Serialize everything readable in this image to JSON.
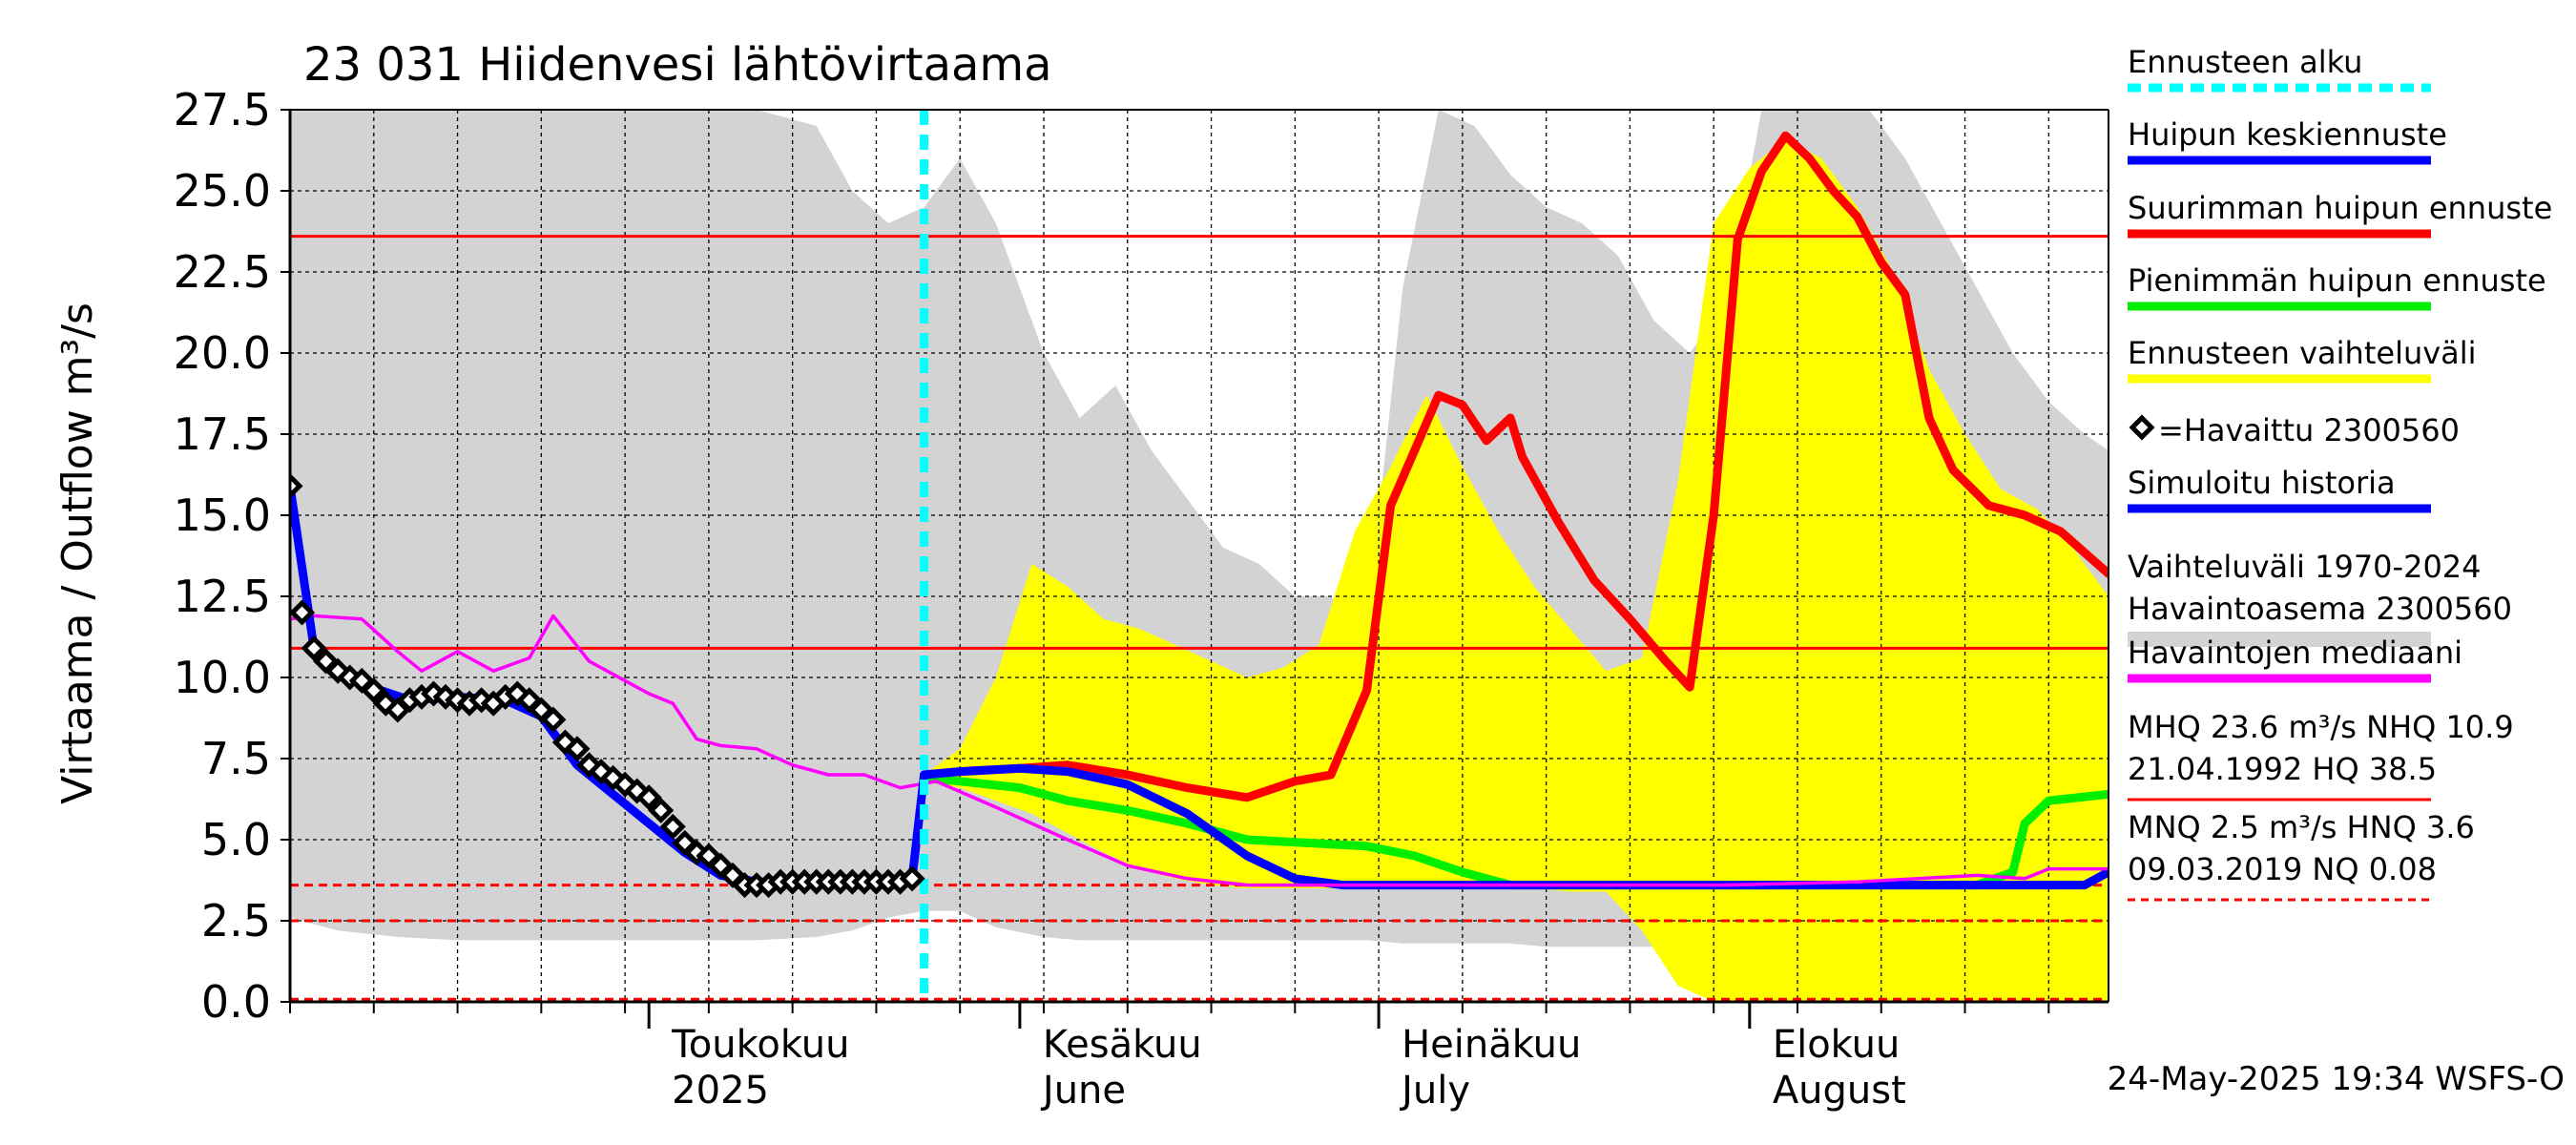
{
  "chart_data": {
    "type": "line",
    "title": "23 031 Hiidenvesi lähtövirtaama",
    "ylabel": "Virtaama / Outflow    m³/s",
    "ylim": [
      0,
      27.5
    ],
    "yticks": [
      "0.0",
      "2.5",
      "5.0",
      "7.5",
      "10.0",
      "12.5",
      "15.0",
      "17.5",
      "20.0",
      "22.5",
      "25.0",
      "27.5"
    ],
    "x_range": [
      "2025-04-01",
      "2025-08-31"
    ],
    "month_labels": [
      {
        "date": "2025-05-01",
        "line1": "Toukokuu",
        "line2": "2025"
      },
      {
        "date": "2025-06-01",
        "line1": "Kesäkuu",
        "line2": "June"
      },
      {
        "date": "2025-07-01",
        "line1": "Heinäkuu",
        "line2": "July"
      },
      {
        "date": "2025-08-01",
        "line1": "Elokuu",
        "line2": "August"
      }
    ],
    "forecast_start": "2025-05-24",
    "reference_lines": [
      {
        "name": "MHQ",
        "value": 23.6,
        "color": "#ff0000",
        "style": "solid"
      },
      {
        "name": "NHQ",
        "value": 10.9,
        "color": "#ff0000",
        "style": "solid"
      },
      {
        "name": "MNQ",
        "value": 2.5,
        "color": "#ff0000",
        "style": "dashed"
      },
      {
        "name": "HNQ",
        "value": 3.6,
        "color": "#ff0000",
        "style": "dashed"
      },
      {
        "name": "NQ",
        "value": 0.08,
        "color": "#ff0000",
        "style": "dashed"
      }
    ],
    "series": [
      {
        "name": "Vaihteluväli 1970-2024 Havaintoasema 2300560",
        "kind": "band",
        "color": "#d3d3d3",
        "x": [
          "2025-04-01",
          "2025-04-05",
          "2025-04-10",
          "2025-04-15",
          "2025-04-20",
          "2025-04-25",
          "2025-04-30",
          "2025-05-05",
          "2025-05-10",
          "2025-05-15",
          "2025-05-18",
          "2025-05-21",
          "2025-05-24",
          "2025-05-27",
          "2025-05-30",
          "2025-06-03",
          "2025-06-06",
          "2025-06-09",
          "2025-06-12",
          "2025-06-15",
          "2025-06-18",
          "2025-06-21",
          "2025-06-24",
          "2025-06-27",
          "2025-06-30",
          "2025-07-03",
          "2025-07-06",
          "2025-07-09",
          "2025-07-12",
          "2025-07-15",
          "2025-07-18",
          "2025-07-21",
          "2025-07-24",
          "2025-07-27",
          "2025-07-30",
          "2025-08-02",
          "2025-08-05",
          "2025-08-08",
          "2025-08-11",
          "2025-08-14",
          "2025-08-17",
          "2025-08-20",
          "2025-08-23",
          "2025-08-26",
          "2025-08-29",
          "2025-08-31"
        ],
        "low": [
          2.6,
          2.2,
          2.0,
          1.9,
          1.9,
          1.9,
          1.9,
          1.9,
          1.9,
          2.0,
          2.2,
          2.6,
          2.8,
          2.8,
          2.3,
          2.0,
          1.9,
          1.9,
          1.9,
          1.9,
          1.9,
          1.9,
          1.9,
          1.9,
          1.9,
          1.8,
          1.8,
          1.8,
          1.8,
          1.7,
          1.7,
          1.7,
          1.7,
          1.7,
          1.7,
          1.6,
          1.5,
          1.5,
          1.5,
          1.5,
          1.5,
          1.4,
          1.3,
          1.2,
          1.1,
          1.1
        ],
        "high": [
          27.5,
          27.5,
          27.5,
          27.5,
          27.5,
          27.5,
          27.5,
          27.5,
          27.5,
          27.0,
          25.0,
          24.0,
          24.5,
          26.0,
          24.0,
          20.0,
          18.0,
          19.0,
          17.0,
          15.5,
          14.0,
          13.5,
          12.5,
          12.5,
          11.5,
          22.0,
          27.5,
          27.0,
          25.5,
          24.5,
          24.0,
          23.0,
          21.0,
          20.0,
          21.5,
          27.5,
          27.5,
          27.5,
          27.5,
          26.0,
          24.0,
          22.0,
          20.0,
          18.5,
          17.5,
          17.0
        ]
      },
      {
        "name": "Ennusteen vaihteluväli",
        "kind": "band",
        "color": "#ffff00",
        "x": [
          "2025-05-24",
          "2025-05-27",
          "2025-05-30",
          "2025-06-02",
          "2025-06-05",
          "2025-06-08",
          "2025-06-11",
          "2025-06-14",
          "2025-06-17",
          "2025-06-20",
          "2025-06-23",
          "2025-06-26",
          "2025-06-29",
          "2025-07-02",
          "2025-07-05",
          "2025-07-08",
          "2025-07-11",
          "2025-07-14",
          "2025-07-17",
          "2025-07-20",
          "2025-07-23",
          "2025-07-26",
          "2025-07-29",
          "2025-08-01",
          "2025-08-04",
          "2025-08-07",
          "2025-08-10",
          "2025-08-13",
          "2025-08-16",
          "2025-08-19",
          "2025-08-22",
          "2025-08-25",
          "2025-08-28",
          "2025-08-31"
        ],
        "low": [
          6.8,
          6.6,
          6.2,
          5.8,
          5.2,
          4.6,
          4.1,
          3.8,
          3.6,
          3.5,
          3.5,
          3.5,
          3.5,
          3.5,
          3.5,
          3.5,
          3.5,
          3.5,
          3.4,
          3.4,
          2.2,
          0.5,
          0.0,
          0.0,
          0.0,
          0.0,
          0.0,
          0.0,
          0.0,
          0.0,
          0.0,
          0.0,
          0.0,
          0.0
        ],
        "high": [
          7.0,
          7.8,
          10.0,
          13.5,
          12.8,
          11.8,
          11.5,
          11.0,
          10.5,
          10.0,
          10.3,
          11.0,
          14.5,
          16.5,
          18.7,
          16.5,
          14.5,
          12.8,
          11.5,
          10.2,
          10.6,
          16.0,
          24.0,
          25.7,
          26.6,
          26.0,
          24.5,
          22.5,
          19.5,
          17.5,
          15.8,
          15.2,
          14.0,
          12.5
        ]
      },
      {
        "name": "Suurimman huipun ennuste",
        "kind": "line",
        "color": "#ff0000",
        "x": [
          "2025-05-24",
          "2025-05-27",
          "2025-06-01",
          "2025-06-05",
          "2025-06-10",
          "2025-06-15",
          "2025-06-20",
          "2025-06-24",
          "2025-06-27",
          "2025-06-30",
          "2025-07-02",
          "2025-07-04",
          "2025-07-06",
          "2025-07-08",
          "2025-07-10",
          "2025-07-12",
          "2025-07-13",
          "2025-07-16",
          "2025-07-19",
          "2025-07-22",
          "2025-07-25",
          "2025-07-27",
          "2025-07-29",
          "2025-07-31",
          "2025-08-02",
          "2025-08-04",
          "2025-08-06",
          "2025-08-08",
          "2025-08-10",
          "2025-08-12",
          "2025-08-14",
          "2025-08-16",
          "2025-08-18",
          "2025-08-21",
          "2025-08-24",
          "2025-08-27",
          "2025-08-31"
        ],
        "y": [
          7.0,
          7.1,
          7.2,
          7.3,
          7.0,
          6.6,
          6.3,
          6.8,
          7.0,
          9.6,
          15.3,
          17.0,
          18.7,
          18.4,
          17.3,
          18.0,
          16.8,
          14.8,
          13.0,
          11.8,
          10.5,
          9.7,
          15.0,
          23.5,
          25.6,
          26.7,
          26.0,
          25.0,
          24.2,
          22.8,
          21.8,
          18.0,
          16.4,
          15.3,
          15.0,
          14.5,
          13.2
        ]
      },
      {
        "name": "Pienimmän huipun ennuste",
        "kind": "line",
        "color": "#00ee00",
        "x": [
          "2025-05-24",
          "2025-05-27",
          "2025-06-01",
          "2025-06-05",
          "2025-06-10",
          "2025-06-15",
          "2025-06-20",
          "2025-06-25",
          "2025-06-30",
          "2025-07-04",
          "2025-07-08",
          "2025-07-12",
          "2025-07-20",
          "2025-07-30",
          "2025-08-10",
          "2025-08-20",
          "2025-08-23",
          "2025-08-24",
          "2025-08-26",
          "2025-08-31"
        ],
        "y": [
          6.9,
          6.8,
          6.6,
          6.2,
          5.9,
          5.5,
          5.0,
          4.9,
          4.8,
          4.5,
          4.0,
          3.6,
          3.6,
          3.6,
          3.6,
          3.6,
          4.0,
          5.5,
          6.2,
          6.4
        ]
      },
      {
        "name": "Huipun keskiennuste",
        "kind": "line",
        "color": "#0000ff",
        "x": [
          "2025-05-24",
          "2025-05-27",
          "2025-06-01",
          "2025-06-05",
          "2025-06-10",
          "2025-06-15",
          "2025-06-20",
          "2025-06-24",
          "2025-06-28",
          "2025-07-05",
          "2025-07-15",
          "2025-07-25",
          "2025-08-05",
          "2025-08-15",
          "2025-08-25",
          "2025-08-29",
          "2025-08-31"
        ],
        "y": [
          7.0,
          7.1,
          7.2,
          7.1,
          6.7,
          5.8,
          4.5,
          3.8,
          3.6,
          3.6,
          3.6,
          3.6,
          3.6,
          3.6,
          3.6,
          3.6,
          4.0
        ]
      },
      {
        "name": "Havaintojen mediaani",
        "kind": "line",
        "color": "#ff00ff",
        "x": [
          "2025-04-01",
          "2025-04-03",
          "2025-04-07",
          "2025-04-10",
          "2025-04-12",
          "2025-04-15",
          "2025-04-18",
          "2025-04-21",
          "2025-04-23",
          "2025-04-26",
          "2025-04-29",
          "2025-05-01",
          "2025-05-03",
          "2025-05-05",
          "2025-05-07",
          "2025-05-10",
          "2025-05-13",
          "2025-05-16",
          "2025-05-19",
          "2025-05-22",
          "2025-05-25",
          "2025-05-30",
          "2025-06-05",
          "2025-06-10",
          "2025-06-15",
          "2025-06-20",
          "2025-06-30",
          "2025-07-15",
          "2025-07-30",
          "2025-08-10",
          "2025-08-20",
          "2025-08-24",
          "2025-08-26",
          "2025-08-31"
        ],
        "y": [
          11.8,
          11.9,
          11.8,
          10.8,
          10.2,
          10.8,
          10.2,
          10.6,
          11.9,
          10.5,
          9.9,
          9.5,
          9.2,
          8.1,
          7.9,
          7.8,
          7.3,
          7.0,
          7.0,
          6.6,
          6.8,
          6.0,
          5.0,
          4.2,
          3.8,
          3.6,
          3.6,
          3.6,
          3.6,
          3.7,
          3.9,
          3.8,
          4.1,
          4.1
        ]
      },
      {
        "name": "Simuloitu historia",
        "kind": "line",
        "color": "#0000ff",
        "x": [
          "2025-04-01",
          "2025-04-03",
          "2025-04-07",
          "2025-04-11",
          "2025-04-15",
          "2025-04-19",
          "2025-04-22",
          "2025-04-25",
          "2025-04-28",
          "2025-05-01",
          "2025-05-04",
          "2025-05-07",
          "2025-05-10",
          "2025-05-13",
          "2025-05-16",
          "2025-05-19",
          "2025-05-22",
          "2025-05-23",
          "2025-05-24"
        ],
        "y": [
          15.9,
          10.9,
          9.8,
          9.3,
          9.4,
          9.3,
          8.8,
          7.3,
          6.4,
          5.5,
          4.6,
          3.9,
          3.7,
          3.7,
          3.7,
          3.7,
          3.7,
          3.8,
          7.0
        ]
      },
      {
        "name": "=Havaittu 2300560",
        "kind": "markers",
        "color": "#000000",
        "x": [
          "2025-04-01",
          "2025-04-02",
          "2025-04-03",
          "2025-04-04",
          "2025-04-05",
          "2025-04-06",
          "2025-04-07",
          "2025-04-08",
          "2025-04-09",
          "2025-04-10",
          "2025-04-11",
          "2025-04-12",
          "2025-04-13",
          "2025-04-14",
          "2025-04-15",
          "2025-04-16",
          "2025-04-17",
          "2025-04-18",
          "2025-04-19",
          "2025-04-20",
          "2025-04-21",
          "2025-04-22",
          "2025-04-23",
          "2025-04-24",
          "2025-04-25",
          "2025-04-26",
          "2025-04-27",
          "2025-04-28",
          "2025-04-29",
          "2025-04-30",
          "2025-05-01",
          "2025-05-02",
          "2025-05-03",
          "2025-05-04",
          "2025-05-05",
          "2025-05-06",
          "2025-05-07",
          "2025-05-08",
          "2025-05-09",
          "2025-05-10",
          "2025-05-11",
          "2025-05-12",
          "2025-05-13",
          "2025-05-14",
          "2025-05-15",
          "2025-05-16",
          "2025-05-17",
          "2025-05-18",
          "2025-05-19",
          "2025-05-20",
          "2025-05-21",
          "2025-05-22",
          "2025-05-23"
        ],
        "y": [
          15.9,
          12.0,
          10.9,
          10.5,
          10.2,
          10.0,
          9.9,
          9.6,
          9.2,
          9.0,
          9.3,
          9.4,
          9.5,
          9.4,
          9.3,
          9.2,
          9.3,
          9.2,
          9.4,
          9.5,
          9.3,
          9.0,
          8.7,
          8.0,
          7.8,
          7.3,
          7.1,
          6.9,
          6.7,
          6.5,
          6.3,
          5.9,
          5.4,
          4.9,
          4.6,
          4.5,
          4.2,
          3.9,
          3.6,
          3.6,
          3.6,
          3.7,
          3.7,
          3.7,
          3.7,
          3.7,
          3.7,
          3.7,
          3.7,
          3.7,
          3.7,
          3.7,
          3.8
        ]
      }
    ],
    "legend": [
      {
        "label": "Ennusteen alku",
        "color": "#00ffff",
        "style": "dashed"
      },
      {
        "label": "Huipun keskiennuste",
        "color": "#0000ff",
        "style": "solid"
      },
      {
        "label": "Suurimman huipun ennuste",
        "color": "#ff0000",
        "style": "solid"
      },
      {
        "label": "Pienimmän huipun ennuste",
        "color": "#00ee00",
        "style": "solid"
      },
      {
        "label": "Ennusteen vaihteluväli",
        "color": "#ffff00",
        "style": "solid"
      },
      {
        "label": "=Havaittu 2300560",
        "color": "#000000",
        "style": "marker"
      },
      {
        "label": "Simuloitu historia",
        "color": "#0000ff",
        "style": "solid"
      },
      {
        "label": "Vaihteluväli 1970-2024",
        "label2": " Havaintoasema 2300560",
        "color": "#d3d3d3",
        "style": "thick"
      },
      {
        "label": "Havaintojen mediaani",
        "color": "#ff00ff",
        "style": "solid"
      },
      {
        "label": "MHQ 23.6 m³/s NHQ 10.9",
        "label2": "21.04.1992 HQ 38.5",
        "color": "#ff0000",
        "style": "solid"
      },
      {
        "label": "MNQ  2.5 m³/s HNQ  3.6",
        "label2": "09.03.2019 NQ 0.08",
        "color": "#ff0000",
        "style": "dashed"
      }
    ],
    "footer": "24-May-2025 19:34 WSFS-O"
  }
}
